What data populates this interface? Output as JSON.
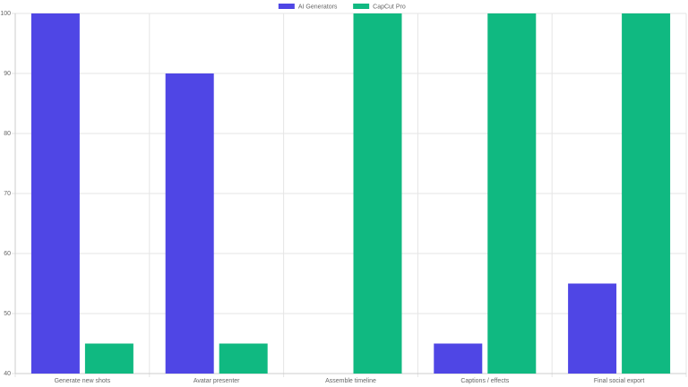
{
  "chart_data": {
    "type": "bar",
    "categories": [
      "Generate new shots",
      "Avatar presenter",
      "Assemble timeline",
      "Captions / effects",
      "Final social export"
    ],
    "series": [
      {
        "name": "AI Generators",
        "color": "#4f46e5",
        "values": [
          100,
          90,
          40,
          45,
          55
        ]
      },
      {
        "name": "CapCut Pro",
        "color": "#10b981",
        "values": [
          45,
          45,
          100,
          100,
          100
        ]
      }
    ],
    "ylim": [
      40,
      100
    ],
    "yticks": [
      40,
      50,
      60,
      70,
      80,
      90,
      100
    ],
    "grid": true,
    "legend": "top"
  }
}
